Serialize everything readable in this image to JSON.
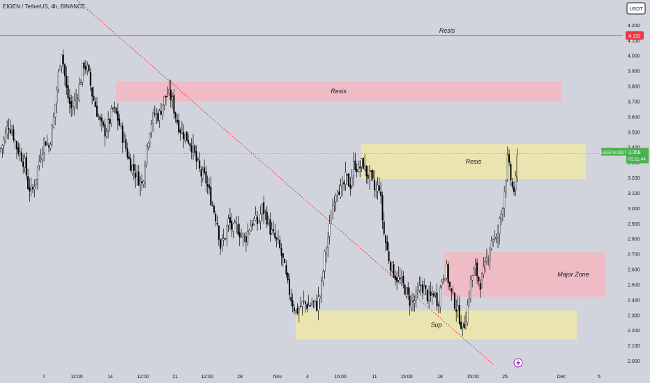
{
  "header": {
    "title": "EIGEN / TetherUS, 4h, BINANCE"
  },
  "currency_button": {
    "label": "USDT"
  },
  "colors": {
    "background": "#d1d4dc",
    "up_candle": "#000000",
    "down_candle": "#000000",
    "resistance_line": "#f23645",
    "trendline": "#f23645",
    "red_zone": "#f4b6c0",
    "yellow_zone": "#efe7a8",
    "price_label": "#4caf50",
    "resis_label": "#f23645"
  },
  "chart_data": {
    "type": "candlestick",
    "title": "EIGEN / TetherUS, 4h, BINANCE",
    "y_ticks": [
      "4.300",
      "4.200",
      "4.100",
      "4.000",
      "3.900",
      "3.800",
      "3.700",
      "3.600",
      "3.500",
      "3.400",
      "3.300",
      "3.200",
      "3.100",
      "3.000",
      "2.900",
      "2.800",
      "2.700",
      "2.600",
      "2.500",
      "2.400",
      "2.300",
      "2.200",
      "2.100",
      "2.000"
    ],
    "x_ticks": [
      "7",
      "12:00",
      "14",
      "12:00",
      "21",
      "12:00",
      "28",
      "Nov",
      "4",
      "15:00",
      "11",
      "15:00",
      "18",
      "15:00",
      "25",
      "Dec",
      "5"
    ],
    "ylim": [
      1.96,
      4.36
    ],
    "resistance_line": {
      "value": 4.132,
      "label": "4.132"
    },
    "last_price": {
      "symbol": "EIGENUSDT",
      "value": "3.358",
      "countdown": "02:11:44"
    },
    "zones": [
      {
        "label": "Resis",
        "color": "red",
        "top": 3.83,
        "bottom": 3.7
      },
      {
        "label": "Resis",
        "color": "yellow",
        "top": 3.42,
        "bottom": 3.19
      },
      {
        "label": "Major Zone",
        "color": "red",
        "top": 2.71,
        "bottom": 2.42
      },
      {
        "label": "Sup",
        "color": "yellow",
        "top": 2.33,
        "bottom": 2.14
      }
    ],
    "top_label": "Resis",
    "closes_path": [
      [
        0,
        3.38
      ],
      [
        6,
        3.45
      ],
      [
        12,
        3.55
      ],
      [
        18,
        3.5
      ],
      [
        24,
        3.4
      ],
      [
        30,
        3.35
      ],
      [
        36,
        3.28
      ],
      [
        40,
        3.15
      ],
      [
        46,
        3.1
      ],
      [
        52,
        3.22
      ],
      [
        58,
        3.35
      ],
      [
        64,
        3.45
      ],
      [
        70,
        3.4
      ],
      [
        76,
        3.55
      ],
      [
        82,
        3.8
      ],
      [
        88,
        4.05
      ],
      [
        92,
        3.9
      ],
      [
        96,
        3.75
      ],
      [
        102,
        3.65
      ],
      [
        108,
        3.7
      ],
      [
        114,
        3.8
      ],
      [
        120,
        3.95
      ],
      [
        126,
        3.9
      ],
      [
        132,
        3.75
      ],
      [
        138,
        3.65
      ],
      [
        144,
        3.55
      ],
      [
        150,
        3.5
      ],
      [
        156,
        3.55
      ],
      [
        162,
        3.65
      ],
      [
        168,
        3.6
      ],
      [
        174,
        3.5
      ],
      [
        180,
        3.4
      ],
      [
        186,
        3.3
      ],
      [
        192,
        3.25
      ],
      [
        198,
        3.2
      ],
      [
        204,
        3.15
      ],
      [
        210,
        3.4
      ],
      [
        216,
        3.55
      ],
      [
        222,
        3.62
      ],
      [
        228,
        3.6
      ],
      [
        234,
        3.7
      ],
      [
        240,
        3.75
      ],
      [
        246,
        3.72
      ],
      [
        252,
        3.6
      ],
      [
        258,
        3.52
      ],
      [
        264,
        3.48
      ],
      [
        270,
        3.45
      ],
      [
        276,
        3.4
      ],
      [
        282,
        3.3
      ],
      [
        288,
        3.22
      ],
      [
        294,
        3.2
      ],
      [
        300,
        3.1
      ],
      [
        306,
        3.0
      ],
      [
        312,
        2.9
      ],
      [
        316,
        2.75
      ],
      [
        322,
        2.8
      ],
      [
        328,
        2.92
      ],
      [
        334,
        2.85
      ],
      [
        340,
        2.88
      ],
      [
        346,
        2.82
      ],
      [
        352,
        2.8
      ],
      [
        358,
        2.88
      ],
      [
        364,
        2.92
      ],
      [
        370,
        2.9
      ],
      [
        376,
        3.0
      ],
      [
        382,
        2.95
      ],
      [
        388,
        2.85
      ],
      [
        394,
        2.8
      ],
      [
        400,
        2.75
      ],
      [
        406,
        2.65
      ],
      [
        412,
        2.5
      ],
      [
        418,
        2.4
      ],
      [
        424,
        2.32
      ],
      [
        430,
        2.35
      ],
      [
        436,
        2.38
      ],
      [
        442,
        2.36
      ],
      [
        448,
        2.38
      ],
      [
        454,
        2.36
      ],
      [
        460,
        2.45
      ],
      [
        466,
        2.7
      ],
      [
        472,
        2.85
      ],
      [
        478,
        3.05
      ],
      [
        484,
        3.15
      ],
      [
        490,
        3.1
      ],
      [
        496,
        3.2
      ],
      [
        502,
        3.15
      ],
      [
        508,
        3.3
      ],
      [
        514,
        3.25
      ],
      [
        520,
        3.3
      ],
      [
        526,
        3.22
      ],
      [
        532,
        3.2
      ],
      [
        538,
        3.1
      ],
      [
        544,
        3.15
      ],
      [
        550,
        2.85
      ],
      [
        556,
        2.7
      ],
      [
        562,
        2.6
      ],
      [
        568,
        2.55
      ],
      [
        574,
        2.52
      ],
      [
        580,
        2.48
      ],
      [
        586,
        2.4
      ],
      [
        592,
        2.38
      ],
      [
        598,
        2.42
      ],
      [
        604,
        2.5
      ],
      [
        610,
        2.45
      ],
      [
        616,
        2.4
      ],
      [
        622,
        2.45
      ],
      [
        628,
        2.38
      ],
      [
        634,
        2.55
      ],
      [
        640,
        2.6
      ],
      [
        646,
        2.45
      ],
      [
        652,
        2.38
      ],
      [
        658,
        2.3
      ],
      [
        664,
        2.2
      ],
      [
        670,
        2.35
      ],
      [
        676,
        2.55
      ],
      [
        682,
        2.6
      ],
      [
        688,
        2.5
      ],
      [
        694,
        2.58
      ],
      [
        700,
        2.7
      ],
      [
        706,
        2.82
      ],
      [
        712,
        2.78
      ],
      [
        716,
        2.9
      ],
      [
        720,
        3.0
      ],
      [
        724,
        3.15
      ],
      [
        728,
        3.32
      ],
      [
        732,
        3.2
      ],
      [
        736,
        3.1
      ],
      [
        740,
        3.18
      ],
      [
        742,
        3.36
      ]
    ]
  }
}
